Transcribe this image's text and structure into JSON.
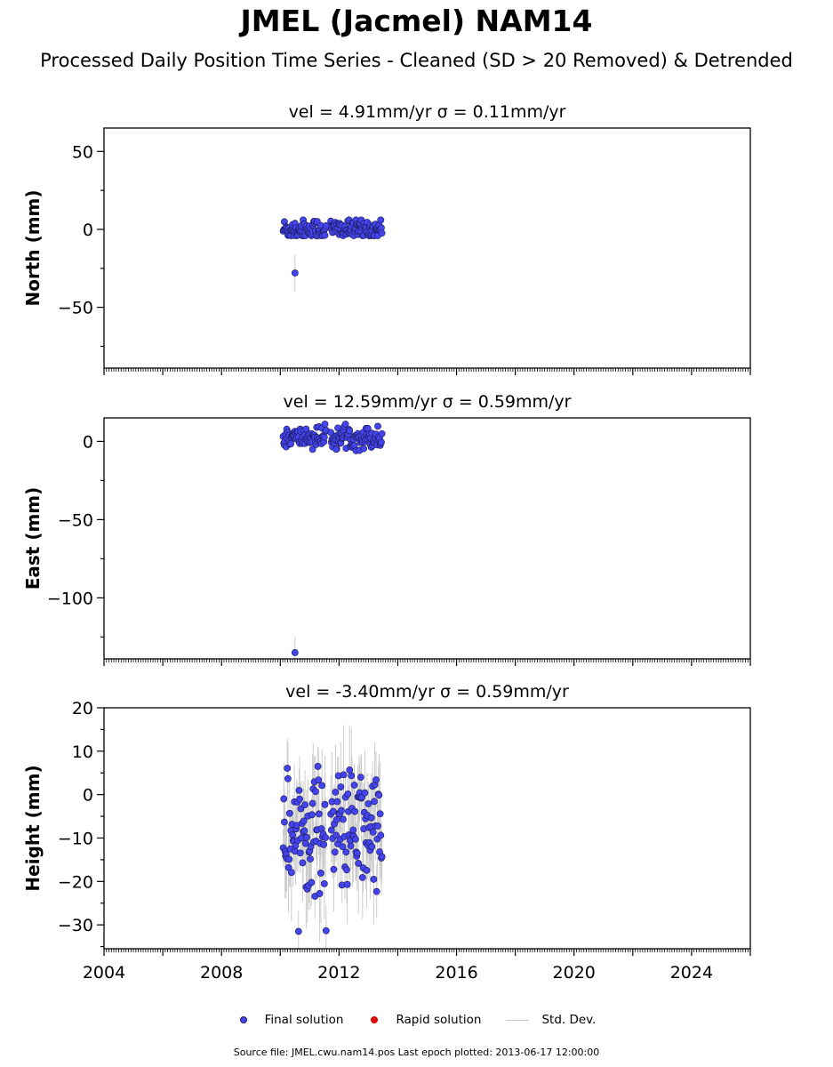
{
  "title": "JMEL (Jacmel) NAM14",
  "subtitle": "Processed Daily Position Time Series - Cleaned (SD > 20 Removed) & Detrended",
  "legend": {
    "final": "Final solution",
    "rapid": "Rapid solution",
    "std": "Std. Dev."
  },
  "colors": {
    "final": "#4444ee",
    "rapid": "#dd0000",
    "std": "#c8c8c8"
  },
  "source": "Source file: JMEL.cwu.nam14.pos  Last epoch plotted: 2013-06-17 12:00:00",
  "chart_data": [
    {
      "type": "scatter",
      "title": "vel = 4.91mm/yr   σ = 0.11mm/yr",
      "ylabel": "North (mm)",
      "xlim": [
        2004,
        2026
      ],
      "ylim": [
        -89,
        65
      ],
      "yticks": [
        50,
        0,
        -50
      ],
      "ytick_labels": [
        "50",
        "0",
        "−50"
      ],
      "data_extent": {
        "x": [
          2010.1,
          2013.46
        ],
        "y_center": 0,
        "y_spread": 3.5,
        "y_range": [
          -4,
          6
        ],
        "sigma_typical": 2
      },
      "outliers": [
        {
          "x": 2010.5,
          "y": -28,
          "sigma": 12
        }
      ],
      "gaps": [
        [
          2011.57,
          2011.71
        ]
      ]
    },
    {
      "type": "scatter",
      "title": "vel = 12.59mm/yr   σ = 0.59mm/yr",
      "ylabel": "East (mm)",
      "xlim": [
        2004,
        2026
      ],
      "ylim": [
        -139,
        15
      ],
      "yticks": [
        0,
        -50,
        -100
      ],
      "ytick_labels": [
        "0",
        "−50",
        "−100"
      ],
      "data_extent": {
        "x": [
          2010.1,
          2013.46
        ],
        "y_center": 2.5,
        "y_spread": 3.5,
        "y_range": [
          -10,
          11
        ],
        "sigma_typical": 2
      },
      "outliers": [
        {
          "x": 2010.5,
          "y": -135,
          "sigma": 10
        },
        {
          "x": 2011.9,
          "y": -5,
          "sigma": 2
        }
      ],
      "gaps": [
        [
          2011.57,
          2011.71
        ]
      ]
    },
    {
      "type": "scatter",
      "title": "vel = -3.40mm/yr   σ = 0.59mm/yr",
      "ylabel": "Height (mm)",
      "xlim": [
        2004,
        2026
      ],
      "ylim": [
        -35.5,
        20
      ],
      "yticks": [
        20,
        10,
        0,
        -10,
        -20,
        -30
      ],
      "ytick_labels": [
        "20",
        "10",
        "0",
        "−10",
        "−20",
        "−30"
      ],
      "xticks": [
        2004,
        2008,
        2012,
        2016,
        2020,
        2024
      ],
      "xtick_labels": [
        "2004",
        "2008",
        "2012",
        "2016",
        "2020",
        "2024"
      ],
      "data_extent": {
        "x": [
          2010.1,
          2013.46
        ],
        "y_center": -8,
        "y_spread": 7,
        "y_range": [
          -31.5,
          20
        ],
        "sigma_typical": 8
      },
      "outliers": [],
      "gaps": [
        [
          2011.57,
          2011.71
        ]
      ]
    }
  ]
}
